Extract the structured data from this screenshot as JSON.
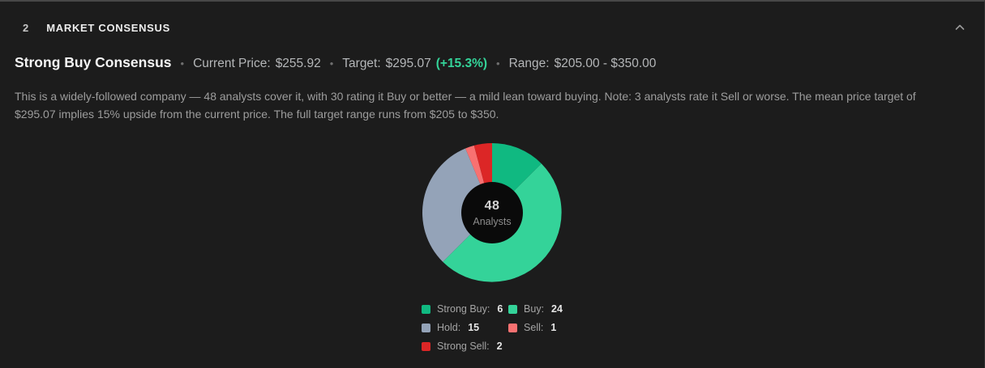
{
  "header": {
    "number": "2",
    "title": "MARKET CONSENSUS"
  },
  "summary": {
    "verdict": "Strong Buy Consensus",
    "separator": "•",
    "current_price_label": "Current Price:",
    "current_price": "$255.92",
    "target_label": "Target:",
    "target": "$295.07",
    "target_change": "(+15.3%)",
    "range_label": "Range:",
    "range": "$205.00 - $350.00"
  },
  "description": "This is a widely-followed company — 48 analysts cover it, with 30 rating it Buy or better — a mild lean toward buying. Note: 3 analysts rate it Sell or worse. The mean price target of $295.07 implies 15% upside from the current price. The full target range runs from $205 to $350.",
  "chart_data": {
    "type": "pie",
    "donut": true,
    "total": 48,
    "center": {
      "value": "48",
      "label": "Analysts"
    },
    "legend_position": "bottom",
    "series": [
      {
        "name": "Strong Buy",
        "label": "Strong Buy:",
        "value": 6,
        "color": "#10b981"
      },
      {
        "name": "Buy",
        "label": "Buy:",
        "value": 24,
        "color": "#34d399"
      },
      {
        "name": "Hold",
        "label": "Hold:",
        "value": 15,
        "color": "#94a3b8"
      },
      {
        "name": "Sell",
        "label": "Sell:",
        "value": 1,
        "color": "#f87171"
      },
      {
        "name": "Strong Sell",
        "label": "Strong Sell:",
        "value": 2,
        "color": "#dc2626"
      }
    ]
  },
  "colors": {
    "background": "#1c1c1c",
    "positive": "#34d399",
    "donut_hole": "#0a0a0a"
  }
}
